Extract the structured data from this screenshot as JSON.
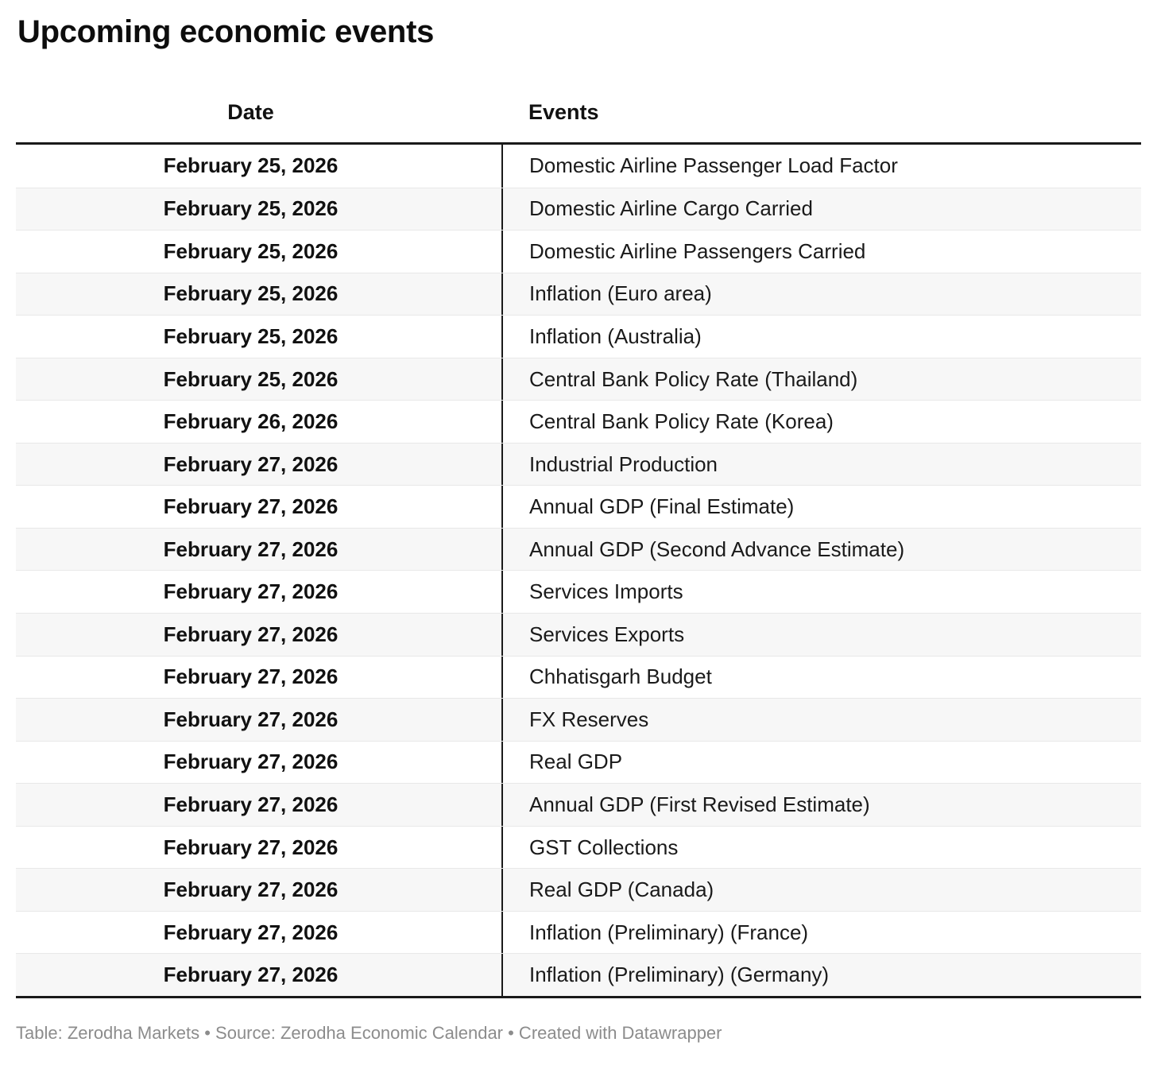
{
  "title": "Upcoming economic events",
  "header": {
    "date_label": "Date",
    "events_label": "Events"
  },
  "chart_data": {
    "type": "table",
    "title": "Upcoming economic events",
    "columns": [
      "Date",
      "Events"
    ],
    "rows": [
      [
        "February 25, 2026",
        "Domestic Airline Passenger Load Factor"
      ],
      [
        "February 25, 2026",
        "Domestic Airline Cargo Carried"
      ],
      [
        "February 25, 2026",
        "Domestic Airline Passengers Carried"
      ],
      [
        "February 25, 2026",
        "Inflation (Euro area)"
      ],
      [
        "February 25, 2026",
        "Inflation (Australia)"
      ],
      [
        "February 25, 2026",
        "Central Bank Policy Rate (Thailand)"
      ],
      [
        "February 26, 2026",
        "Central Bank Policy Rate (Korea)"
      ],
      [
        "February 27, 2026",
        "Industrial Production"
      ],
      [
        "February 27, 2026",
        "Annual GDP (Final Estimate)"
      ],
      [
        "February 27, 2026",
        "Annual GDP (Second Advance Estimate)"
      ],
      [
        "February 27, 2026",
        "Services Imports"
      ],
      [
        "February 27, 2026",
        "Services Exports"
      ],
      [
        "February 27, 2026",
        "Chhatisgarh Budget"
      ],
      [
        "February 27, 2026",
        "FX Reserves"
      ],
      [
        "February 27, 2026",
        "Real GDP"
      ],
      [
        "February 27, 2026",
        "Annual GDP (First Revised Estimate)"
      ],
      [
        "February 27, 2026",
        "GST Collections"
      ],
      [
        "February 27, 2026",
        "Real GDP (Canada)"
      ],
      [
        "February 27, 2026",
        "Inflation (Preliminary) (France)"
      ],
      [
        "February 27, 2026",
        "Inflation (Preliminary) (Germany)"
      ]
    ],
    "layout_hints": {
      "zebra_striping": true,
      "date_column_alignment": "center",
      "events_column_alignment": "left"
    }
  },
  "footer": {
    "text": "Table: Zerodha Markets • Source: Zerodha Economic Calendar • Created with Datawrapper"
  },
  "colors": {
    "stripe": "#f7f7f7",
    "row_border": "#e8e8e8",
    "table_border": "#1a1a1a",
    "text": "#1a1a1a",
    "footer_text": "#8c8c8c"
  }
}
